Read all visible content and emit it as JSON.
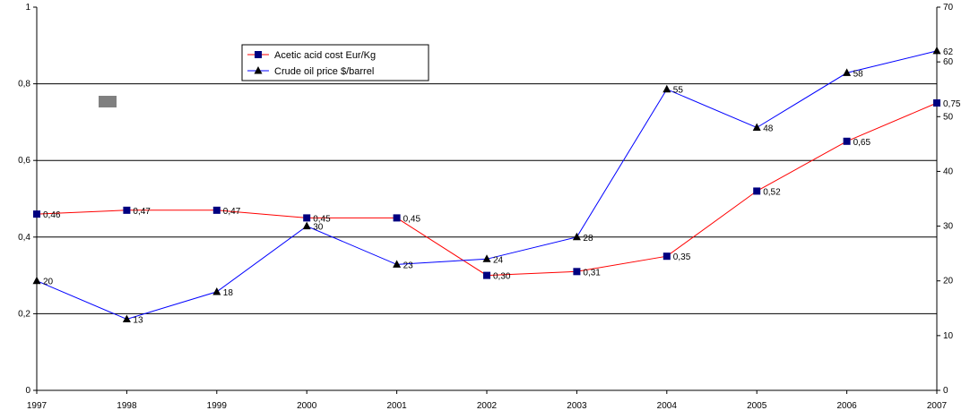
{
  "chart_data": {
    "type": "line",
    "title": "",
    "xlabel": "",
    "ylabel": "",
    "y2label": "",
    "categories": [
      "1997",
      "1998",
      "1999",
      "2000",
      "2001",
      "2002",
      "2003",
      "2004",
      "2005",
      "2006",
      "2007"
    ],
    "ylim": [
      0,
      1
    ],
    "yticks": [
      "0",
      "0,2",
      "0,4",
      "0,6",
      "0,8",
      "1"
    ],
    "y2lim": [
      0,
      70
    ],
    "y2ticks": [
      "0",
      "10",
      "20",
      "30",
      "40",
      "50",
      "60",
      "70"
    ],
    "grid": "horizontal major lines",
    "legend_position": "top-center",
    "series": [
      {
        "name": "Acetic acid cost Eur/Kg",
        "axis": "left",
        "color": "#ff0000",
        "marker": "square",
        "marker_color": "#000080",
        "values": [
          0.46,
          0.47,
          0.47,
          0.45,
          0.45,
          0.3,
          0.31,
          0.35,
          0.52,
          0.65,
          0.75
        ],
        "labels": [
          "0,46",
          "0,47",
          "0,47",
          "0,45",
          "0,45",
          "0,30",
          "0,31",
          "0,35",
          "0,52",
          "0,65",
          "0,75"
        ]
      },
      {
        "name": "Crude oil price $/barrel",
        "axis": "right",
        "color": "#0000ff",
        "marker": "triangle",
        "marker_color": "#000000",
        "values": [
          20,
          13,
          18,
          30,
          23,
          24,
          28,
          55,
          48,
          58,
          62
        ],
        "labels": [
          "20",
          "13",
          "18",
          "30",
          "23",
          "24",
          "28",
          "55",
          "48",
          "58",
          "62"
        ]
      }
    ],
    "decoration_color": "#808080"
  }
}
